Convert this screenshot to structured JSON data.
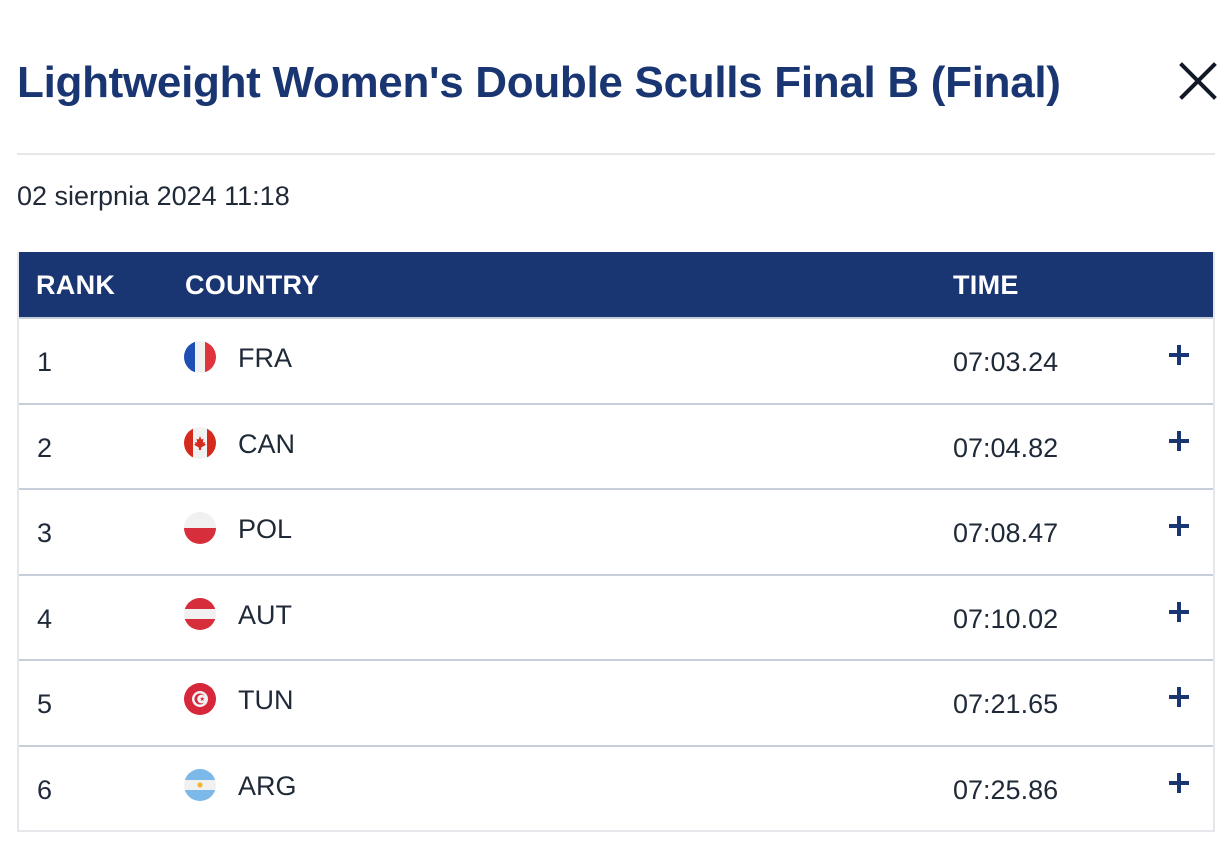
{
  "header": {
    "title": "Lightweight Women's Double Sculls Final B (Final)",
    "close_icon": "close-icon"
  },
  "event": {
    "date": "02 sierpnia 2024 11:18"
  },
  "table": {
    "columns": [
      "RANK",
      "COUNTRY",
      "TIME"
    ],
    "rows": [
      {
        "rank": "1",
        "country": "FRA",
        "flag_icon": "france-flag-icon",
        "time": "07:03.24",
        "expand_icon": "plus-icon"
      },
      {
        "rank": "2",
        "country": "CAN",
        "flag_icon": "canada-flag-icon",
        "time": "07:04.82",
        "expand_icon": "plus-icon"
      },
      {
        "rank": "3",
        "country": "POL",
        "flag_icon": "poland-flag-icon",
        "time": "07:08.47",
        "expand_icon": "plus-icon"
      },
      {
        "rank": "4",
        "country": "AUT",
        "flag_icon": "austria-flag-icon",
        "time": "07:10.02",
        "expand_icon": "plus-icon"
      },
      {
        "rank": "5",
        "country": "TUN",
        "flag_icon": "tunisia-flag-icon",
        "time": "07:21.65",
        "expand_icon": "plus-icon"
      },
      {
        "rank": "6",
        "country": "ARG",
        "flag_icon": "argentina-flag-icon",
        "time": "07:25.86",
        "expand_icon": "plus-icon"
      }
    ]
  },
  "colors": {
    "title": "#1a3672",
    "header_background": "#1a3672",
    "header_text": "#ffffff",
    "row_border": "#c6ced9",
    "divider": "#e5e7eb"
  }
}
